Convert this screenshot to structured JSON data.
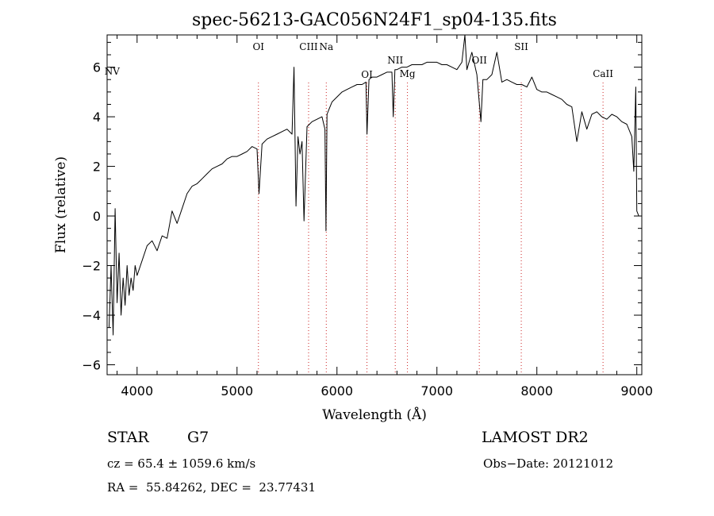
{
  "chart_data": {
    "type": "line",
    "title": "spec-56213-GAC056N24F1_sp04-135.fits",
    "xlabel": "Wavelength (Å)",
    "ylabel": "Flux (relative)",
    "xlim": [
      3700,
      9050
    ],
    "ylim": [
      -6.4,
      7.3
    ],
    "xticks": [
      4000,
      5000,
      6000,
      7000,
      8000,
      9000
    ],
    "xtick_labels": [
      "4000",
      "5000",
      "6000",
      "7000",
      "8000",
      "9000"
    ],
    "yticks": [
      -6,
      -4,
      -2,
      0,
      2,
      4,
      6
    ],
    "ytick_labels": [
      "−6",
      "−4",
      "−2",
      "0",
      "2",
      "4",
      "6"
    ],
    "line_color": "#000000",
    "marker_color": "#cc2222",
    "series": [
      {
        "x": [
          3720,
          3740,
          3760,
          3780,
          3800,
          3820,
          3840,
          3860,
          3880,
          3900,
          3920,
          3940,
          3960,
          3980,
          4000,
          4050,
          4100,
          4150,
          4200,
          4250,
          4300,
          4350,
          4400,
          4450,
          4500,
          4550,
          4600,
          4650,
          4700,
          4750,
          4800,
          4850,
          4900,
          4950,
          5000,
          5050,
          5100,
          5150,
          5200,
          5220,
          5250,
          5300,
          5350,
          5400,
          5450,
          5500,
          5550,
          5570,
          5590,
          5610,
          5630,
          5650,
          5670,
          5700,
          5750,
          5800,
          5850,
          5880,
          5890,
          5900,
          5920,
          5950,
          6000,
          6050,
          6100,
          6150,
          6200,
          6250,
          6290,
          6300,
          6320,
          6350,
          6400,
          6450,
          6500,
          6550,
          6563,
          6580,
          6600,
          6650,
          6700,
          6750,
          6800,
          6850,
          6900,
          6950,
          7000,
          7050,
          7100,
          7150,
          7200,
          7250,
          7280,
          7300,
          7350,
          7400,
          7440,
          7460,
          7500,
          7550,
          7600,
          7650,
          7700,
          7750,
          7800,
          7850,
          7900,
          7950,
          8000,
          8050,
          8100,
          8150,
          8200,
          8250,
          8300,
          8350,
          8400,
          8450,
          8500,
          8550,
          8600,
          8650,
          8700,
          8750,
          8800,
          8850,
          8900,
          8950,
          8970,
          8990,
          9000,
          9020
        ],
        "y": [
          -4.5,
          -2.0,
          -4.8,
          0.3,
          -3.5,
          -1.5,
          -4.0,
          -2.5,
          -3.6,
          -2.0,
          -3.2,
          -2.5,
          -3.0,
          -2.0,
          -2.4,
          -1.8,
          -1.2,
          -1.0,
          -1.4,
          -0.8,
          -0.9,
          0.2,
          -0.3,
          0.3,
          0.9,
          1.2,
          1.3,
          1.5,
          1.7,
          1.9,
          2.0,
          2.1,
          2.3,
          2.4,
          2.4,
          2.5,
          2.6,
          2.8,
          2.7,
          0.9,
          2.9,
          3.1,
          3.2,
          3.3,
          3.4,
          3.5,
          3.3,
          6.0,
          0.4,
          3.2,
          2.5,
          3.0,
          -0.2,
          3.6,
          3.8,
          3.9,
          4.0,
          3.5,
          -0.6,
          4.1,
          4.3,
          4.6,
          4.8,
          5.0,
          5.1,
          5.2,
          5.3,
          5.3,
          5.4,
          3.3,
          5.5,
          5.6,
          5.6,
          5.7,
          5.8,
          5.8,
          4.0,
          5.9,
          5.9,
          6.0,
          6.0,
          6.1,
          6.1,
          6.1,
          6.2,
          6.2,
          6.2,
          6.1,
          6.1,
          6.0,
          5.9,
          6.2,
          7.3,
          5.9,
          6.6,
          5.7,
          3.8,
          5.5,
          5.5,
          5.7,
          6.6,
          5.4,
          5.5,
          5.4,
          5.3,
          5.3,
          5.2,
          5.6,
          5.1,
          5.0,
          5.0,
          4.9,
          4.8,
          4.7,
          4.5,
          4.4,
          3.0,
          4.2,
          3.5,
          4.1,
          4.2,
          4.0,
          3.9,
          4.1,
          4.0,
          3.8,
          3.7,
          3.2,
          1.8,
          5.2,
          0.2,
          0.0
        ]
      }
    ],
    "lines": [
      {
        "label": "NV",
        "x": 3750
      },
      {
        "label": "OI",
        "x": 5214
      },
      {
        "label": "CIII",
        "x": 5716
      },
      {
        "label": "Na",
        "x": 5893
      },
      {
        "label": "OI",
        "x": 6300
      },
      {
        "label": "NII",
        "x": 6583
      },
      {
        "label": "Mg",
        "x": 6705
      },
      {
        "label": "OII",
        "x": 7424
      },
      {
        "label": "SII",
        "x": 7844
      },
      {
        "label": "CaII",
        "x": 8662
      }
    ]
  },
  "info": {
    "object_class": "STAR",
    "subclass": "G7",
    "survey": "LAMOST DR2",
    "redshift": "cz = 65.4 ± 1059.6 km/s",
    "obs_date": "Obs−Date: 20121012",
    "coords": "RA =  55.84262, DEC =  23.77431"
  }
}
